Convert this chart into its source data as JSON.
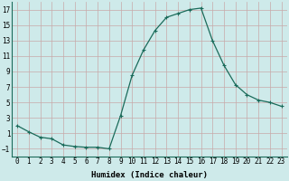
{
  "x": [
    0,
    1,
    2,
    3,
    4,
    5,
    6,
    7,
    8,
    9,
    10,
    11,
    12,
    13,
    14,
    15,
    16,
    17,
    18,
    19,
    20,
    21,
    22,
    23
  ],
  "y": [
    2.0,
    1.2,
    0.5,
    0.3,
    -0.5,
    -0.7,
    -0.8,
    -0.8,
    -1.0,
    3.3,
    8.5,
    11.8,
    14.3,
    16.0,
    16.5,
    17.0,
    17.2,
    13.0,
    9.8,
    7.3,
    6.0,
    5.3,
    5.0,
    4.5
  ],
  "line_color": "#1a6b5a",
  "marker": "+",
  "marker_size": 3,
  "marker_linewidth": 0.8,
  "line_width": 0.9,
  "xlabel": "Humidex (Indice chaleur)",
  "ylim": [
    -2,
    18
  ],
  "xlim": [
    -0.5,
    23.5
  ],
  "yticks": [
    -1,
    1,
    3,
    5,
    7,
    9,
    11,
    13,
    15,
    17
  ],
  "xtick_labels": [
    "0",
    "1",
    "2",
    "3",
    "4",
    "5",
    "6",
    "7",
    "8",
    "9",
    "10",
    "11",
    "12",
    "13",
    "14",
    "15",
    "16",
    "17",
    "18",
    "19",
    "20",
    "21",
    "22",
    "23"
  ],
  "background_color": "#ceeaea",
  "grid_color": "#b8d8d8",
  "label_fontsize": 6.5,
  "tick_fontsize": 5.5
}
